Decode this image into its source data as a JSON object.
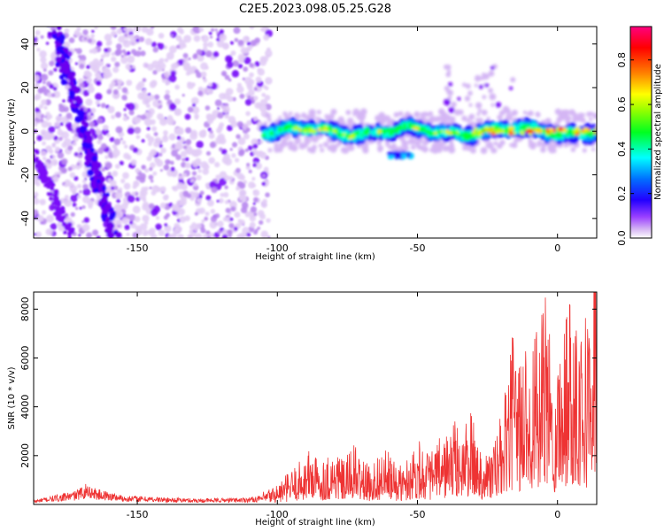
{
  "title": "C2E5.2023.098.05.25.G28",
  "chart_data": [
    {
      "type": "heatmap",
      "xlabel": "Height of straight line (km)",
      "ylabel": "Frequency (Hz)",
      "xlim": [
        -187,
        14
      ],
      "ylim": [
        -49,
        48
      ],
      "xticks": [
        "-150",
        "-100",
        "-50",
        "0"
      ],
      "yticks": [
        "40",
        "20",
        "0",
        "-20",
        "-40"
      ],
      "colorbar": {
        "label": "Normalized spectral amplitude",
        "range": [
          0,
          0.95
        ],
        "ticks": [
          "0.0",
          "0.2",
          "0.4",
          "0.6",
          "0.8"
        ]
      },
      "colormap": [
        "#ffffff",
        "#c8a0f0",
        "#7a00ff",
        "#2200ff",
        "#00a0ff",
        "#00ffdd",
        "#00ff30",
        "#c8ff00",
        "#ffe000",
        "#ff7000",
        "#ff0000",
        "#ff0080"
      ],
      "features": [
        {
          "name": "diffuse noise",
          "x_range": [
            -187,
            -103
          ],
          "y_range": [
            -49,
            48
          ],
          "level": 0.15
        },
        {
          "name": "diagonal streak",
          "from": [
            -180,
            48
          ],
          "to": [
            -158,
            -49
          ],
          "level": 0.25
        },
        {
          "name": "central band",
          "x_range": [
            -105,
            14
          ],
          "y_center": 0,
          "level": 0.6
        },
        {
          "name": "peak",
          "x": -10,
          "y": 0,
          "level": 0.9
        }
      ]
    },
    {
      "type": "line",
      "xlabel": "Height of straight line (km)",
      "ylabel": "SNR (10 * v/v)",
      "xlim": [
        -187,
        14
      ],
      "ylim": [
        0,
        8700
      ],
      "xticks": [
        "-150",
        "-100",
        "-50",
        "0"
      ],
      "yticks": [
        "8000",
        "6000",
        "4000",
        "2000"
      ],
      "color": "#ee3333",
      "series": [
        {
          "x": [
            -187,
            -182,
            -177,
            -172,
            -168,
            -164,
            -160,
            -155,
            -150,
            -145,
            -140,
            -135,
            -130,
            -125,
            -120,
            -115,
            -110,
            -105,
            -100,
            -97,
            -94,
            -91,
            -88,
            -85,
            -82,
            -79,
            -76,
            -73,
            -70,
            -67,
            -64,
            -61,
            -58,
            -55,
            -52,
            -49,
            -46,
            -43,
            -40,
            -37,
            -34,
            -31,
            -28,
            -25,
            -22,
            -19,
            -16,
            -13,
            -10,
            -7,
            -4,
            -1,
            2,
            5,
            8,
            11,
            14
          ],
          "y": [
            150,
            250,
            350,
            450,
            700,
            500,
            420,
            300,
            280,
            260,
            230,
            220,
            200,
            200,
            210,
            220,
            240,
            300,
            500,
            700,
            900,
            1100,
            1400,
            1000,
            1200,
            1300,
            1000,
            1500,
            1100,
            900,
            1200,
            1300,
            1000,
            900,
            1400,
            1600,
            1200,
            1500,
            1700,
            2000,
            1800,
            2200,
            1500,
            1300,
            1600,
            2500,
            4000,
            3500,
            4500,
            4000,
            5000,
            3200,
            4500,
            5500,
            5000,
            4500,
            8500
          ]
        }
      ]
    }
  ]
}
